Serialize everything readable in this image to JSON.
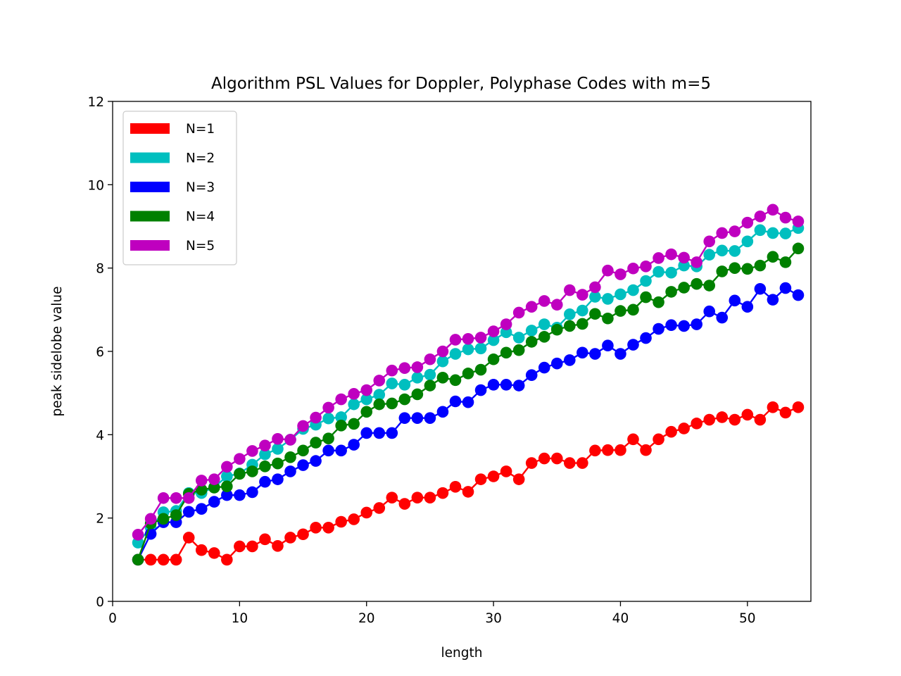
{
  "chart_data": {
    "type": "line",
    "title": "Algorithm PSL Values for Doppler, Polyphase Codes with m=5",
    "xlabel": "length",
    "ylabel": "peak sidelobe value",
    "xlim": [
      0,
      55
    ],
    "ylim": [
      0,
      12
    ],
    "xticks": [
      "0",
      "10",
      "20",
      "30",
      "40",
      "50"
    ],
    "yticks": [
      "0",
      "2",
      "4",
      "6",
      "8",
      "10",
      "12"
    ],
    "grid": false,
    "legend_position": "top-left",
    "x": [
      2,
      3,
      4,
      5,
      6,
      7,
      8,
      9,
      10,
      11,
      12,
      13,
      14,
      15,
      16,
      17,
      18,
      19,
      20,
      21,
      22,
      23,
      24,
      25,
      26,
      27,
      28,
      29,
      30,
      31,
      32,
      33,
      34,
      35,
      36,
      37,
      38,
      39,
      40,
      41,
      42,
      43,
      44,
      45,
      46,
      47,
      48,
      49,
      50,
      51,
      52,
      53,
      54
    ],
    "series": [
      {
        "name": "N=1",
        "color": "#ff0000",
        "values": [
          1.0,
          1.0,
          1.0,
          1.0,
          1.53,
          1.23,
          1.16,
          1.0,
          1.32,
          1.32,
          1.49,
          1.33,
          1.53,
          1.61,
          1.77,
          1.77,
          1.91,
          1.97,
          2.13,
          2.24,
          2.49,
          2.34,
          2.49,
          2.49,
          2.6,
          2.75,
          2.63,
          2.93,
          3.0,
          3.12,
          2.93,
          3.32,
          3.43,
          3.43,
          3.32,
          3.32,
          3.62,
          3.63,
          3.63,
          3.89,
          3.63,
          3.89,
          4.07,
          4.15,
          4.27,
          4.36,
          4.42,
          4.36,
          4.48,
          4.36,
          4.66,
          4.53,
          4.66
        ]
      },
      {
        "name": "N=2",
        "color": "#00bfbf",
        "values": [
          1.41,
          1.77,
          2.14,
          2.17,
          2.6,
          2.6,
          2.74,
          3.0,
          3.07,
          3.28,
          3.53,
          3.66,
          3.88,
          4.14,
          4.24,
          4.39,
          4.42,
          4.73,
          4.85,
          4.96,
          5.23,
          5.2,
          5.37,
          5.44,
          5.76,
          5.94,
          6.05,
          6.07,
          6.27,
          6.46,
          6.33,
          6.5,
          6.65,
          6.57,
          6.89,
          6.98,
          7.31,
          7.26,
          7.37,
          7.47,
          7.69,
          7.91,
          7.89,
          8.06,
          8.04,
          8.32,
          8.42,
          8.41,
          8.64,
          8.91,
          8.84,
          8.83,
          8.96
        ]
      },
      {
        "name": "N=3",
        "color": "#0000ff",
        "values": [
          1.0,
          1.62,
          1.9,
          1.9,
          2.15,
          2.22,
          2.39,
          2.55,
          2.55,
          2.62,
          2.87,
          2.93,
          3.12,
          3.27,
          3.37,
          3.62,
          3.62,
          3.76,
          4.04,
          4.04,
          4.04,
          4.4,
          4.4,
          4.4,
          4.55,
          4.8,
          4.78,
          5.07,
          5.2,
          5.2,
          5.18,
          5.43,
          5.61,
          5.71,
          5.79,
          5.97,
          5.94,
          6.14,
          5.94,
          6.16,
          6.32,
          6.54,
          6.63,
          6.61,
          6.65,
          6.96,
          6.81,
          7.22,
          7.07,
          7.5,
          7.24,
          7.52,
          7.35
        ]
      },
      {
        "name": "N=4",
        "color": "#008000",
        "values": [
          1.0,
          1.87,
          1.98,
          2.07,
          2.58,
          2.68,
          2.73,
          2.76,
          3.06,
          3.12,
          3.24,
          3.31,
          3.46,
          3.62,
          3.81,
          3.91,
          4.22,
          4.26,
          4.55,
          4.73,
          4.75,
          4.85,
          4.97,
          5.18,
          5.37,
          5.31,
          5.47,
          5.56,
          5.81,
          5.97,
          6.03,
          6.23,
          6.35,
          6.52,
          6.61,
          6.66,
          6.9,
          6.79,
          6.97,
          7.0,
          7.3,
          7.18,
          7.43,
          7.53,
          7.62,
          7.58,
          7.92,
          8.0,
          7.98,
          8.06,
          8.27,
          8.14,
          8.47
        ]
      },
      {
        "name": "N=5",
        "color": "#bf00bf",
        "values": [
          1.6,
          1.98,
          2.48,
          2.48,
          2.48,
          2.9,
          2.93,
          3.23,
          3.42,
          3.61,
          3.74,
          3.9,
          3.88,
          4.21,
          4.41,
          4.65,
          4.85,
          4.98,
          5.07,
          5.3,
          5.54,
          5.6,
          5.62,
          5.81,
          6.0,
          6.28,
          6.3,
          6.33,
          6.48,
          6.65,
          6.93,
          7.07,
          7.21,
          7.12,
          7.47,
          7.36,
          7.54,
          7.94,
          7.85,
          7.99,
          8.04,
          8.24,
          8.33,
          8.25,
          8.14,
          8.64,
          8.84,
          8.88,
          9.09,
          9.24,
          9.4,
          9.21,
          9.12
        ]
      }
    ]
  }
}
